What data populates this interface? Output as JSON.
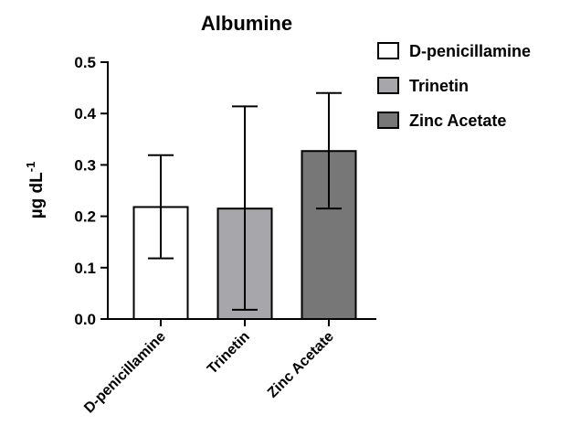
{
  "chart_data": {
    "type": "bar",
    "title": "Albumine",
    "ylabel": "µg dL-1",
    "ylabel_base": "µg dL",
    "ylabel_sup": "-1",
    "xlabel": "",
    "ylim": [
      0,
      0.5
    ],
    "yticks": [
      0.0,
      0.1,
      0.2,
      0.3,
      0.4,
      0.5
    ],
    "ytick_labels": [
      "0.0",
      "0.1",
      "0.2",
      "0.3",
      "0.4",
      "0.5"
    ],
    "categories": [
      "D-penicillamine",
      "Trinetin",
      "Zinc Acetate"
    ],
    "values": [
      0.218,
      0.215,
      0.327
    ],
    "error_upper": [
      0.319,
      0.414,
      0.44
    ],
    "error_lower": [
      0.118,
      0.018,
      0.215
    ],
    "colors": [
      "#ffffff",
      "#a6a6ab",
      "#777777"
    ],
    "legend": {
      "placement": "top-right",
      "entries": [
        "D-penicillamine",
        "Trinetin",
        "Zinc Acetate"
      ]
    },
    "grid": false
  }
}
